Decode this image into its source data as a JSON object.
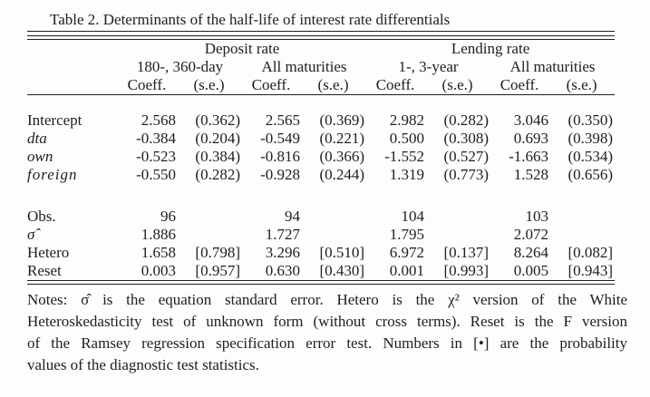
{
  "title": "Table 2.  Determinants of the half-life of interest rate differentials",
  "table": {
    "groups": [
      {
        "label": "Deposit rate"
      },
      {
        "label": "Lending rate"
      }
    ],
    "subgroups": [
      {
        "label": "180-, 360-day"
      },
      {
        "label": "All maturities"
      },
      {
        "label": "1-, 3-year"
      },
      {
        "label": "All maturities"
      }
    ],
    "measure_headers": [
      "Coeff.",
      "(s.e.)",
      "Coeff.",
      "(s.e.)",
      "Coeff.",
      "(s.e.)",
      "Coeff.",
      "(s.e.)"
    ],
    "coefficient_rows": [
      {
        "label": "Intercept",
        "values": [
          "2.568",
          "(0.362)",
          "2.565",
          "(0.369)",
          "2.982",
          "(0.282)",
          "3.046",
          "(0.350)"
        ]
      },
      {
        "label": "dta",
        "values": [
          "-0.384",
          "(0.204)",
          "-0.549",
          "(0.221)",
          "0.500",
          "(0.308)",
          "0.693",
          "(0.398)"
        ]
      },
      {
        "label": "own",
        "values": [
          "-0.523",
          "(0.384)",
          "-0.816",
          "(0.366)",
          "-1.552",
          "(0.527)",
          "-1.663",
          "(0.534)"
        ]
      },
      {
        "label": "foreign",
        "values": [
          "-0.550",
          "(0.282)",
          "-0.928",
          "(0.244)",
          "1.319",
          "(0.773)",
          "1.528",
          "(0.656)"
        ]
      }
    ],
    "statistic_rows": [
      {
        "label": "Obs.",
        "values": [
          "96",
          "",
          "94",
          "",
          "104",
          "",
          "103",
          ""
        ]
      },
      {
        "label": "σ̂",
        "values": [
          "1.886",
          "",
          "1.727",
          "",
          "1.795",
          "",
          "2.072",
          ""
        ]
      },
      {
        "label": "Hetero",
        "values": [
          "1.658",
          "[0.798]",
          "3.296",
          "[0.510]",
          "6.972",
          "[0.137]",
          "8.264",
          "[0.082]"
        ]
      },
      {
        "label": "Reset",
        "values": [
          "0.003",
          "[0.957]",
          "0.630",
          "[0.430]",
          "0.001",
          "[0.993]",
          "0.005",
          "[0.943]"
        ]
      }
    ]
  },
  "notes": {
    "lines": [
      "Notes: σ̂ is the equation standard error.  Hetero is the χ² version of the White",
      "Heteroskedasticity test of unknown form (without cross terms). Reset is the F version",
      "of the Ramsey regression specification error test. Numbers in [•] are the probability",
      "values of the diagnostic test statistics."
    ]
  }
}
